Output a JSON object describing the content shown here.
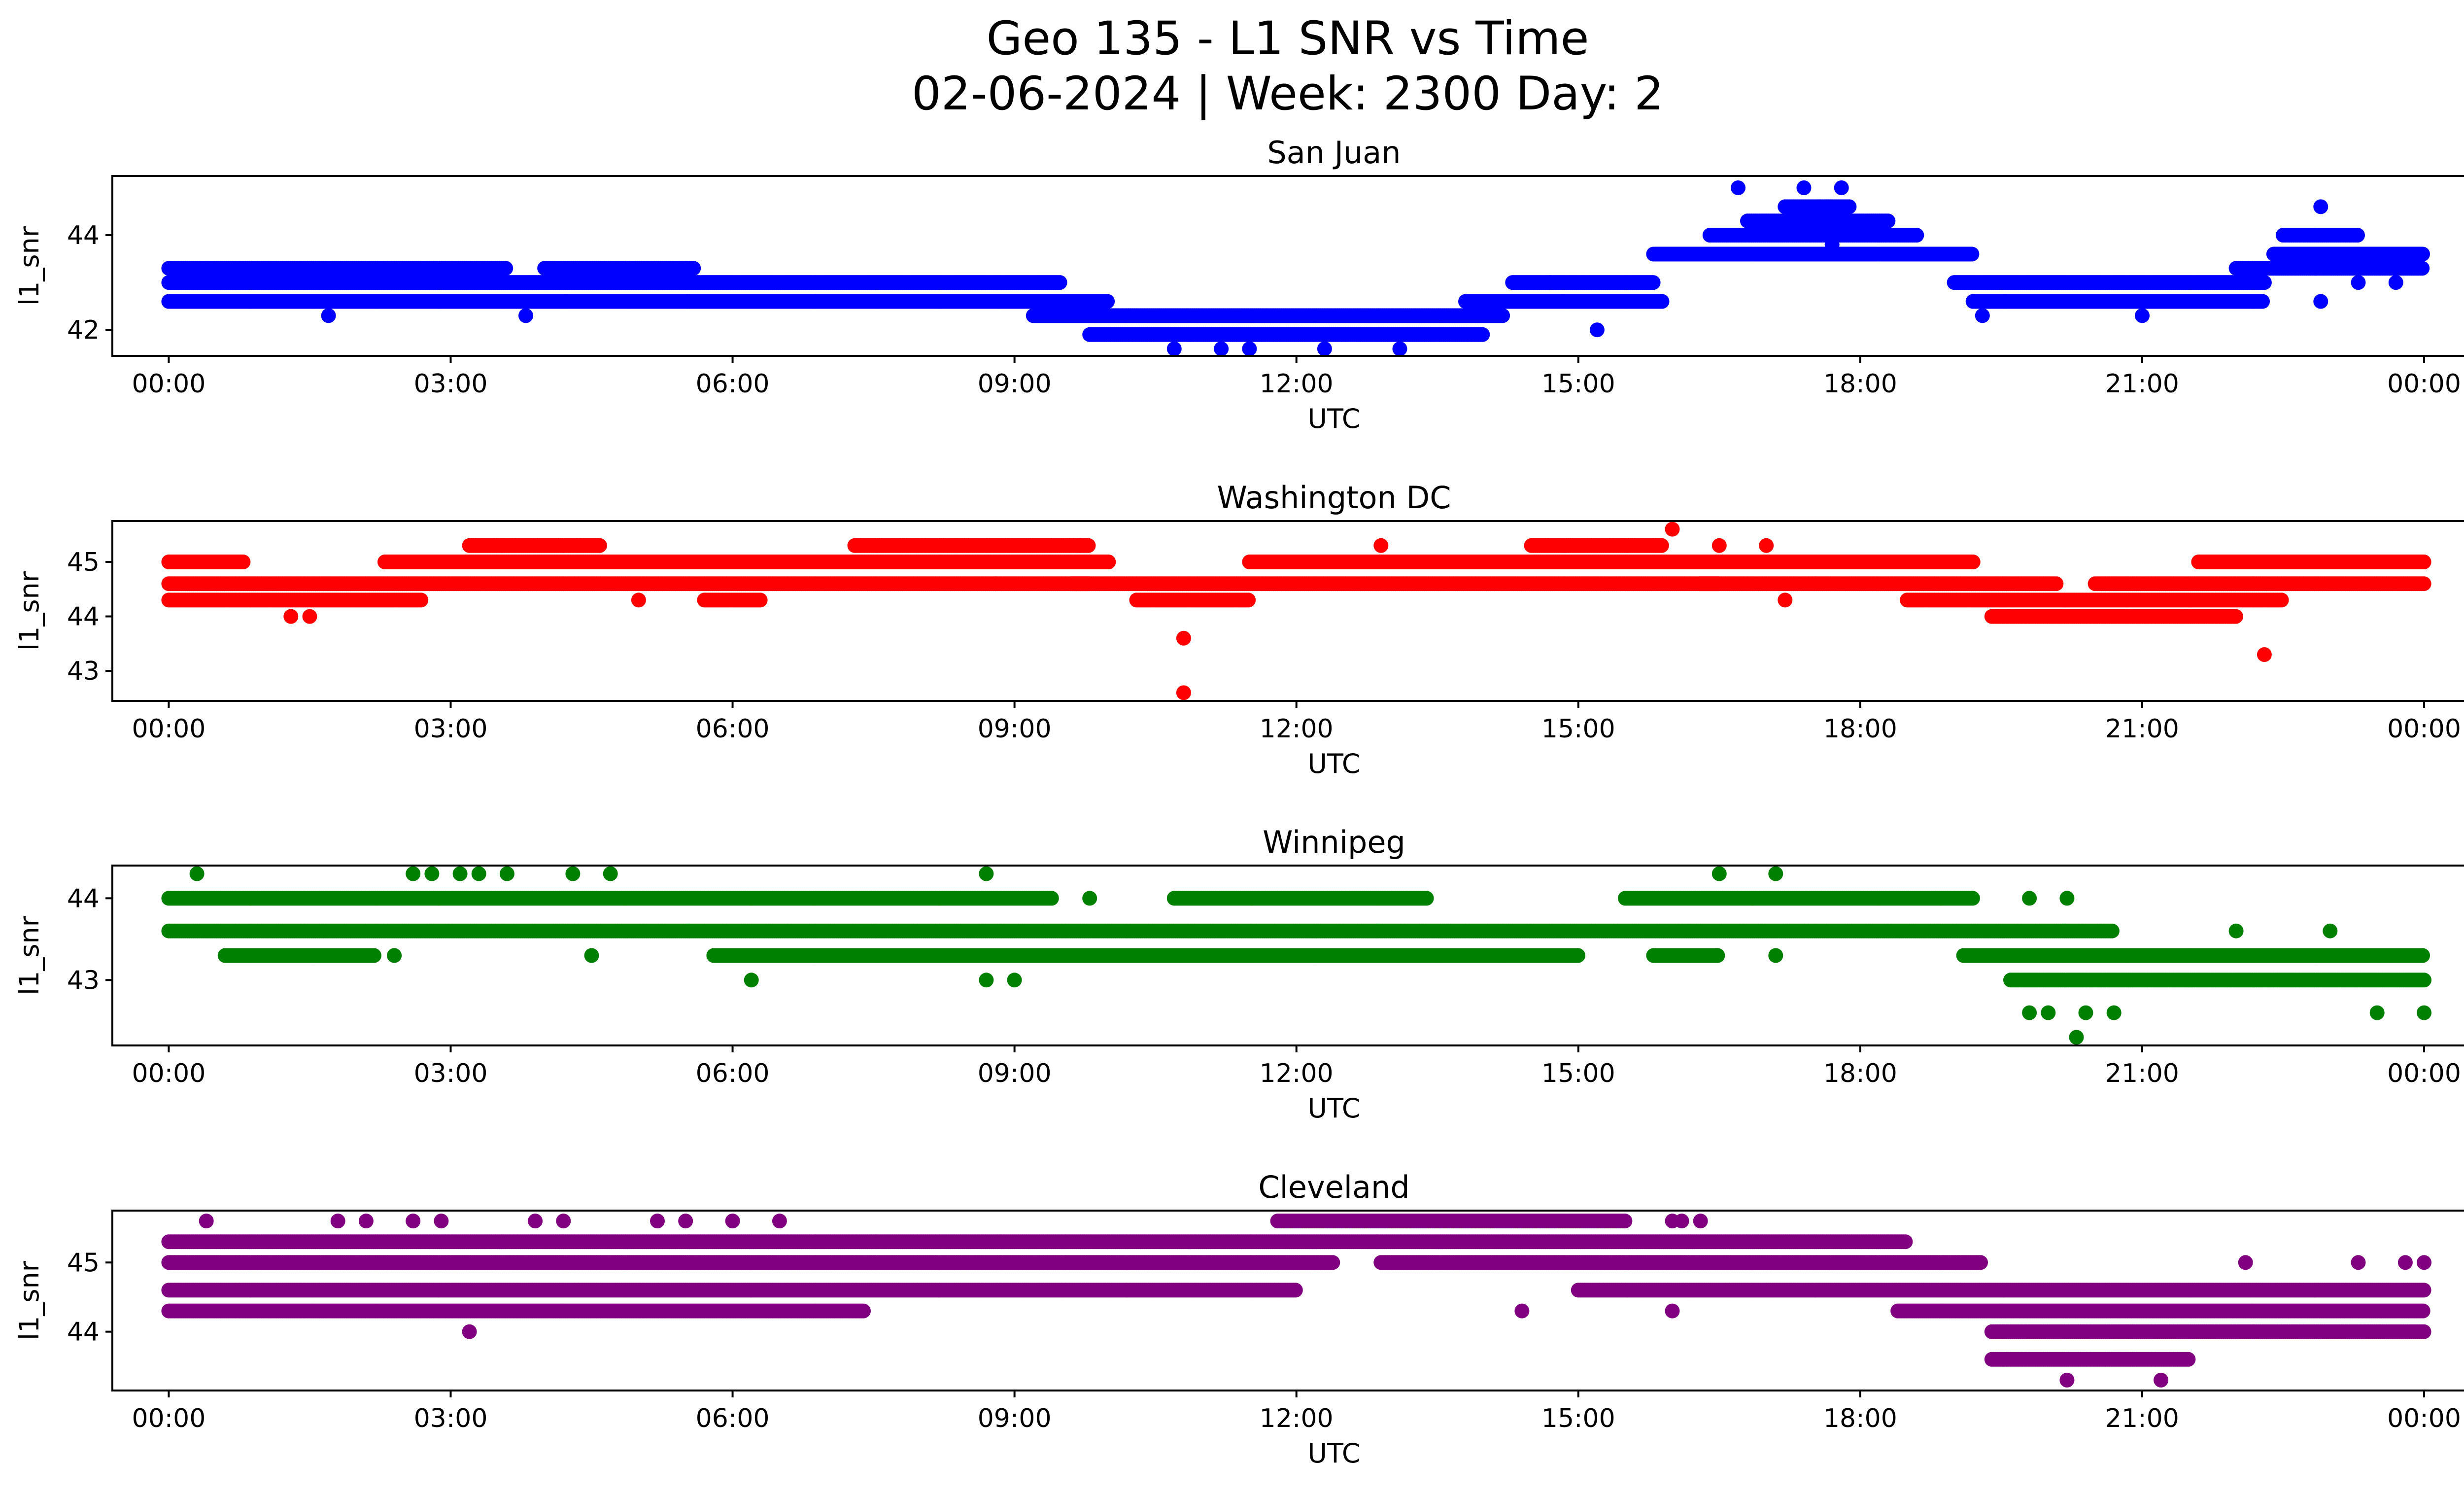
{
  "figure": {
    "title_line1": "Geo 135 - L1 SNR vs Time",
    "title_line2": "02-06-2024 | Week: 2300 Day: 2"
  },
  "chart_data": [
    {
      "type": "scatter",
      "title": "San Juan",
      "xlabel": "UTC",
      "ylabel": "l1_snr",
      "color": "#0000ff",
      "x_ticks": [
        "00:00",
        "03:00",
        "06:00",
        "09:00",
        "12:00",
        "15:00",
        "18:00",
        "21:00",
        "00:00"
      ],
      "xlim": [
        -0.6,
        25.4
      ],
      "ylim": [
        41.45,
        45.25
      ],
      "y_ticks": [
        42,
        44
      ],
      "bands": [
        {
          "y": 43.3,
          "segments": [
            [
              0.0,
              3.6
            ],
            [
              4.0,
              5.6
            ],
            [
              22.0,
              24.0
            ]
          ]
        },
        {
          "y": 43.0,
          "segments": [
            [
              0.0,
              9.5
            ],
            [
              14.3,
              15.8
            ],
            [
              19.0,
              22.3
            ]
          ]
        },
        {
          "y": 42.6,
          "segments": [
            [
              0.0,
              10.0
            ],
            [
              13.8,
              15.9
            ],
            [
              19.2,
              22.3
            ]
          ]
        },
        {
          "y": 42.3,
          "segments": [
            [
              9.2,
              14.2
            ]
          ]
        },
        {
          "y": 41.9,
          "segments": [
            [
              9.8,
              14.0
            ]
          ]
        },
        {
          "y": 43.6,
          "segments": [
            [
              15.8,
              19.2
            ],
            [
              22.4,
              24.0
            ]
          ]
        },
        {
          "y": 44.0,
          "segments": [
            [
              16.4,
              18.6
            ],
            [
              22.5,
              23.3
            ]
          ]
        },
        {
          "y": 44.3,
          "segments": [
            [
              16.8,
              18.3
            ]
          ]
        },
        {
          "y": 44.6,
          "segments": [
            [
              17.2,
              17.9
            ]
          ]
        }
      ],
      "points": [
        [
          1.7,
          42.3
        ],
        [
          3.8,
          42.3
        ],
        [
          10.7,
          41.6
        ],
        [
          11.2,
          41.6
        ],
        [
          11.5,
          41.6
        ],
        [
          12.3,
          41.6
        ],
        [
          13.1,
          41.6
        ],
        [
          15.2,
          42.0
        ],
        [
          14.7,
          43.0
        ],
        [
          16.7,
          45.0
        ],
        [
          17.4,
          45.0
        ],
        [
          17.8,
          45.0
        ],
        [
          17.7,
          43.8
        ],
        [
          19.3,
          42.3
        ],
        [
          21.0,
          42.3
        ],
        [
          22.9,
          42.6
        ],
        [
          23.3,
          43.0
        ],
        [
          23.7,
          43.0
        ],
        [
          22.9,
          44.6
        ],
        [
          5.5,
          43.3
        ]
      ]
    },
    {
      "type": "scatter",
      "title": "Washington DC",
      "xlabel": "UTC",
      "ylabel": "l1_snr",
      "color": "#ff0000",
      "x_ticks": [
        "00:00",
        "03:00",
        "06:00",
        "09:00",
        "12:00",
        "15:00",
        "18:00",
        "21:00",
        "00:00"
      ],
      "xlim": [
        -0.6,
        25.4
      ],
      "ylim": [
        42.45,
        45.75
      ],
      "y_ticks": [
        43,
        44,
        45
      ],
      "bands": [
        {
          "y": 45.0,
          "segments": [
            [
              0.0,
              0.8
            ],
            [
              2.3,
              10.0
            ],
            [
              11.5,
              19.2
            ],
            [
              21.6,
              24.0
            ]
          ]
        },
        {
          "y": 44.6,
          "segments": [
            [
              0.0,
              9.8
            ],
            [
              9.6,
              16.5
            ],
            [
              16.3,
              20.1
            ],
            [
              20.5,
              24.0
            ]
          ]
        },
        {
          "y": 44.3,
          "segments": [
            [
              0.0,
              2.7
            ],
            [
              5.7,
              6.3
            ],
            [
              10.3,
              11.5
            ],
            [
              18.5,
              22.5
            ]
          ]
        },
        {
          "y": 45.3,
          "segments": [
            [
              3.2,
              4.6
            ],
            [
              7.3,
              9.8
            ],
            [
              14.5,
              15.9
            ]
          ]
        },
        {
          "y": 44.0,
          "segments": [
            [
              19.4,
              22.0
            ]
          ]
        }
      ],
      "points": [
        [
          1.3,
          44.0
        ],
        [
          1.5,
          44.0
        ],
        [
          10.8,
          43.6
        ],
        [
          10.8,
          42.6
        ],
        [
          16.0,
          45.6
        ],
        [
          22.3,
          43.3
        ],
        [
          12.9,
          45.3
        ],
        [
          16.5,
          45.3
        ],
        [
          17.0,
          45.3
        ],
        [
          17.2,
          44.3
        ],
        [
          5.0,
          44.3
        ],
        [
          8.8,
          44.6
        ],
        [
          9.7,
          45.3
        ]
      ]
    },
    {
      "type": "scatter",
      "title": "Winnipeg",
      "xlabel": "UTC",
      "ylabel": "l1_snr",
      "color": "#008000",
      "x_ticks": [
        "00:00",
        "03:00",
        "06:00",
        "09:00",
        "12:00",
        "15:00",
        "18:00",
        "21:00",
        "00:00"
      ],
      "xlim": [
        -0.6,
        25.4
      ],
      "ylim": [
        42.2,
        44.4
      ],
      "y_ticks": [
        43,
        44
      ],
      "bands": [
        {
          "y": 44.0,
          "segments": [
            [
              0.0,
              9.4
            ],
            [
              10.7,
              13.4
            ],
            [
              15.5,
              19.2
            ]
          ]
        },
        {
          "y": 43.6,
          "segments": [
            [
              0.0,
              20.7
            ]
          ]
        },
        {
          "y": 43.3,
          "segments": [
            [
              0.6,
              2.2
            ],
            [
              5.8,
              15.0
            ],
            [
              15.8,
              16.5
            ],
            [
              19.1,
              24.0
            ]
          ]
        },
        {
          "y": 43.0,
          "segments": [
            [
              19.6,
              24.0
            ]
          ]
        }
      ],
      "points": [
        [
          0.3,
          44.3
        ],
        [
          2.6,
          44.3
        ],
        [
          2.8,
          44.3
        ],
        [
          3.1,
          44.3
        ],
        [
          3.3,
          44.3
        ],
        [
          3.6,
          44.3
        ],
        [
          4.3,
          44.3
        ],
        [
          4.7,
          44.3
        ],
        [
          8.7,
          44.3
        ],
        [
          16.5,
          44.3
        ],
        [
          17.1,
          44.3
        ],
        [
          6.2,
          43.0
        ],
        [
          8.7,
          43.0
        ],
        [
          9.0,
          43.0
        ],
        [
          19.8,
          42.6
        ],
        [
          20.0,
          42.6
        ],
        [
          20.4,
          42.6
        ],
        [
          20.7,
          42.6
        ],
        [
          20.3,
          42.3
        ],
        [
          23.5,
          42.6
        ],
        [
          24.0,
          42.6
        ],
        [
          22.0,
          43.6
        ],
        [
          23.0,
          43.6
        ],
        [
          2.4,
          43.3
        ],
        [
          4.5,
          43.3
        ],
        [
          17.1,
          43.3
        ],
        [
          9.8,
          44.0
        ],
        [
          19.8,
          44.0
        ],
        [
          20.2,
          44.0
        ]
      ]
    },
    {
      "type": "scatter",
      "title": "Cleveland",
      "xlabel": "UTC",
      "ylabel": "l1_snr",
      "color": "#800080",
      "x_ticks": [
        "00:00",
        "03:00",
        "06:00",
        "09:00",
        "12:00",
        "15:00",
        "18:00",
        "21:00",
        "00:00"
      ],
      "xlim": [
        -0.6,
        25.4
      ],
      "ylim": [
        43.15,
        45.75
      ],
      "y_ticks": [
        44,
        45
      ],
      "bands": [
        {
          "y": 45.0,
          "segments": [
            [
              0.0,
              12.4
            ],
            [
              12.9,
              19.3
            ]
          ]
        },
        {
          "y": 44.6,
          "segments": [
            [
              0.0,
              12.0
            ],
            [
              15.0,
              24.0
            ]
          ]
        },
        {
          "y": 44.3,
          "segments": [
            [
              0.0,
              7.4
            ],
            [
              18.4,
              24.0
            ]
          ]
        },
        {
          "y": 45.3,
          "segments": [
            [
              0.0,
              18.5
            ]
          ]
        },
        {
          "y": 45.6,
          "segments": [
            [
              11.8,
              15.5
            ]
          ]
        },
        {
          "y": 44.0,
          "segments": [
            [
              19.4,
              24.0
            ]
          ]
        },
        {
          "y": 43.6,
          "segments": [
            [
              19.4,
              21.5
            ]
          ]
        }
      ],
      "points": [
        [
          0.4,
          45.6
        ],
        [
          1.8,
          45.6
        ],
        [
          2.1,
          45.6
        ],
        [
          2.6,
          45.6
        ],
        [
          2.9,
          45.6
        ],
        [
          3.9,
          45.6
        ],
        [
          4.2,
          45.6
        ],
        [
          5.2,
          45.6
        ],
        [
          5.5,
          45.6
        ],
        [
          6.0,
          45.6
        ],
        [
          6.5,
          45.6
        ],
        [
          16.0,
          45.6
        ],
        [
          16.3,
          45.6
        ],
        [
          16.1,
          45.6
        ],
        [
          3.2,
          44.0
        ],
        [
          14.4,
          44.3
        ],
        [
          16.0,
          44.3
        ],
        [
          20.2,
          43.3
        ],
        [
          21.2,
          43.3
        ],
        [
          22.1,
          45.0
        ],
        [
          23.3,
          45.0
        ],
        [
          23.8,
          45.0
        ],
        [
          24.0,
          45.0
        ]
      ]
    }
  ]
}
